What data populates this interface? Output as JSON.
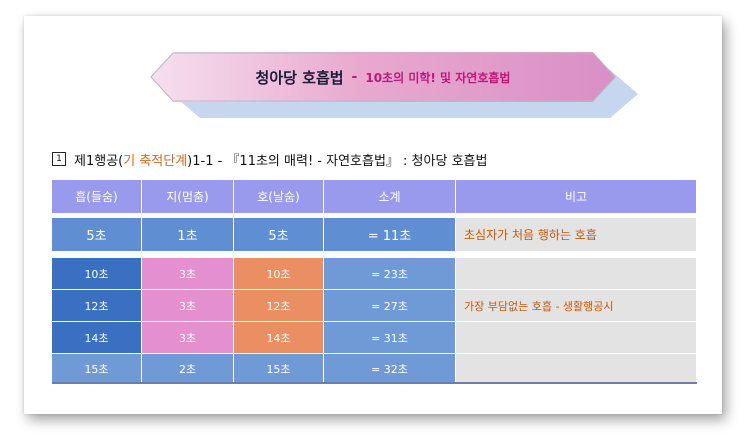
{
  "banner": {
    "main": "청아당 호흡법",
    "separator": "-",
    "sub": "10초의 미학! 및 자연호흡법"
  },
  "heading": {
    "number": "1",
    "part1": "제1행공(",
    "part2": "기 축적단계",
    "part3": ")1-1 - 『11초의 매력! - 자연호흡법』 : 청아당 호흡법"
  },
  "table": {
    "headers": [
      "흡(들숨)",
      "지(멈춤)",
      "호(날숨)",
      "소계",
      "비고"
    ],
    "first_row": [
      "5초",
      "1초",
      "5초",
      "= 11초",
      "초심자가 처음 행하는 호흡"
    ],
    "rows": [
      [
        "10초",
        "3초",
        "10초",
        "= 23초",
        ""
      ],
      [
        "12초",
        "3초",
        "12초",
        "= 27초",
        "가장 부담없는 호흡 - 생활행공시"
      ],
      [
        "14초",
        "3초",
        "14초",
        "= 31초",
        ""
      ],
      [
        "15초",
        "2초",
        "15초",
        "= 32초",
        ""
      ]
    ]
  }
}
